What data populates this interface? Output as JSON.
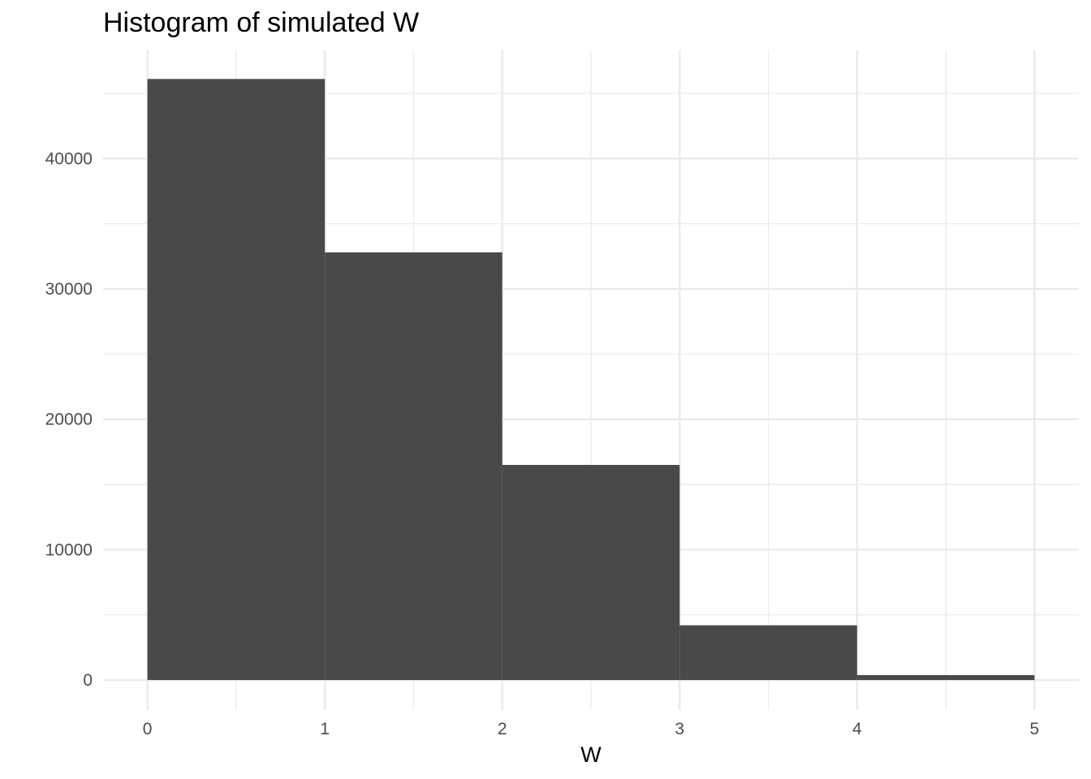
{
  "chart_data": {
    "type": "bar",
    "title": "Histogram of simulated W",
    "xlabel": "W",
    "ylabel": "",
    "bins": [
      {
        "x0": 0,
        "x1": 1,
        "count": 46100
      },
      {
        "x0": 1,
        "x1": 2,
        "count": 32800
      },
      {
        "x0": 2,
        "x1": 3,
        "count": 16500
      },
      {
        "x0": 3,
        "x1": 4,
        "count": 4200
      },
      {
        "x0": 4,
        "x1": 5,
        "count": 380
      }
    ],
    "xlim": [
      -0.25,
      5.25
    ],
    "ylim": [
      -2300,
      48300
    ],
    "x_ticks": [
      0,
      1,
      2,
      3,
      4,
      5
    ],
    "x_tick_labels": [
      "0",
      "1",
      "2",
      "3",
      "4",
      "5"
    ],
    "y_ticks": [
      0,
      10000,
      20000,
      30000,
      40000
    ],
    "y_tick_labels": [
      "0",
      "10000",
      "20000",
      "30000",
      "40000"
    ],
    "grid": true,
    "colors": {
      "bar": "#494949",
      "grid": "#ebebeb",
      "tick_text": "#4d4d4d",
      "title_text": "#000000"
    }
  }
}
